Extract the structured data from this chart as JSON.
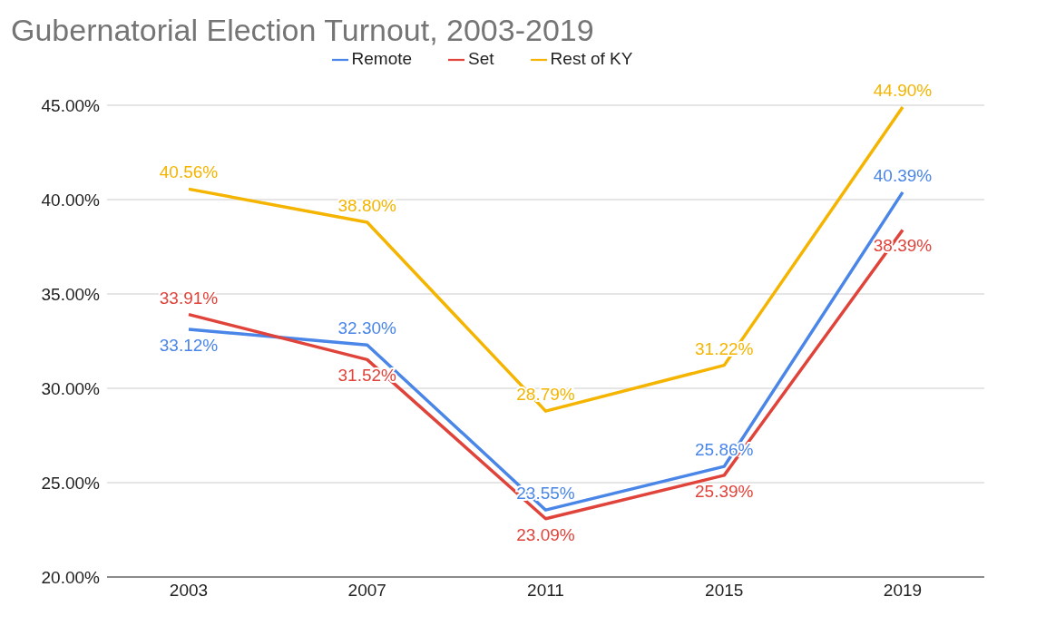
{
  "chart_data": {
    "type": "line",
    "title": "Gubernatorial Election Turnout, 2003-2019",
    "categories": [
      "2003",
      "2007",
      "2011",
      "2015",
      "2019"
    ],
    "series": [
      {
        "name": "Remote",
        "color": "#4a86e8",
        "values": [
          33.12,
          32.3,
          23.55,
          25.86,
          40.39
        ],
        "value_labels": [
          "33.12%",
          "32.30%",
          "23.55%",
          "25.86%",
          "40.39%"
        ]
      },
      {
        "name": "Set",
        "color": "#e0433a",
        "values": [
          33.91,
          31.52,
          23.09,
          25.39,
          38.39
        ],
        "value_labels": [
          "33.91%",
          "31.52%",
          "23.09%",
          "25.39%",
          "38.39%"
        ]
      },
      {
        "name": "Rest of KY",
        "color": "#f4b400",
        "values": [
          40.56,
          38.8,
          28.79,
          31.22,
          44.9
        ],
        "value_labels": [
          "40.56%",
          "38.80%",
          "28.79%",
          "31.22%",
          "44.90%"
        ]
      }
    ],
    "ylim": [
      20,
      45
    ],
    "yticks": [
      {
        "value": 20,
        "label": "20.00%"
      },
      {
        "value": 25,
        "label": "25.00%"
      },
      {
        "value": 30,
        "label": "30.00%"
      },
      {
        "value": 35,
        "label": "35.00%"
      },
      {
        "value": 40,
        "label": "40.00%"
      },
      {
        "value": 45,
        "label": "45.00%"
      }
    ],
    "grid": "y",
    "legend": "top",
    "marker": "none",
    "line_style": "solid"
  }
}
